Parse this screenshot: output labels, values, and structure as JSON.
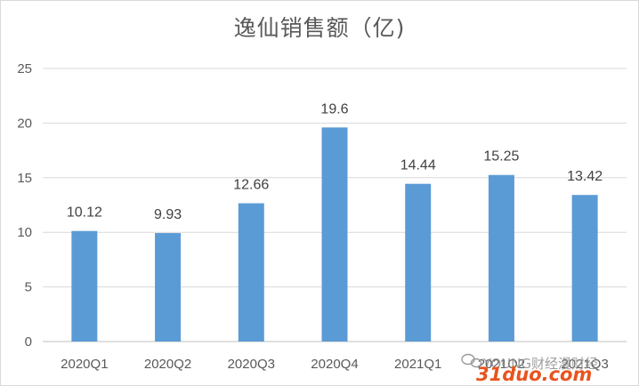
{
  "chart_data": {
    "type": "bar",
    "title": "逸仙销售额（亿)",
    "categories": [
      "2020Q1",
      "2020Q2",
      "2020Q3",
      "2020Q4",
      "2021Q1",
      "2021Q2",
      "2021Q3"
    ],
    "values": [
      10.12,
      9.93,
      12.66,
      19.6,
      14.44,
      15.25,
      13.42
    ],
    "data_labels": [
      "10.12",
      "9.93",
      "12.66",
      "19.6",
      "14.44",
      "15.25",
      "13.42"
    ],
    "ylim": [
      0,
      25
    ],
    "yticks": [
      0,
      5,
      10,
      15,
      20,
      25
    ],
    "grid": true,
    "xlabel": "",
    "ylabel": "",
    "bar_color": "#5b9bd5"
  },
  "watermark": {
    "text": "YOUNG财经漫财经",
    "logo_text": "31duo.com",
    "logo_color": "#e8541e"
  }
}
